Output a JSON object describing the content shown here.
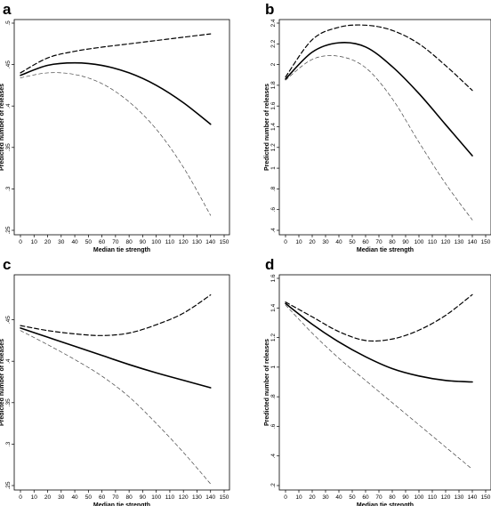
{
  "chart_data": [
    {
      "panel": "a",
      "type": "line",
      "xlabel": "Median tie strength",
      "ylabel": "Predicted number of releases",
      "xlim": [
        0,
        150
      ],
      "ylim": [
        0.25,
        0.5
      ],
      "xticks": [
        "0",
        "10",
        "20",
        "30",
        "40",
        "50",
        "60",
        "70",
        "80",
        "90",
        "100",
        "110",
        "120",
        "130",
        "140",
        "150"
      ],
      "yticks": [
        ".25",
        ".3",
        ".35",
        ".4",
        ".45",
        ".5"
      ],
      "x": [
        0,
        20,
        40,
        60,
        80,
        100,
        120,
        140
      ],
      "series": [
        {
          "style": "solid",
          "values": [
            0.437,
            0.449,
            0.452,
            0.449,
            0.44,
            0.425,
            0.404,
            0.378
          ]
        },
        {
          "style": "dashed-bold",
          "values": [
            0.44,
            0.458,
            0.466,
            0.471,
            0.475,
            0.479,
            0.483,
            0.487
          ]
        },
        {
          "style": "dashed-thin",
          "values": [
            0.434,
            0.44,
            0.438,
            0.427,
            0.405,
            0.372,
            0.326,
            0.268
          ]
        }
      ]
    },
    {
      "panel": "b",
      "type": "line",
      "xlabel": "Median tie strength",
      "ylabel": "Predicted number of releases",
      "xlim": [
        0,
        150
      ],
      "ylim": [
        0.4,
        2.4
      ],
      "xticks": [
        "0",
        "10",
        "20",
        "30",
        "40",
        "50",
        "60",
        "70",
        "80",
        "90",
        "100",
        "110",
        "120",
        "130",
        "140",
        "150"
      ],
      "yticks": [
        ".4",
        ".6",
        ".8",
        "1",
        "1.2",
        "1.4",
        "1.6",
        "1.8",
        "2",
        "2.2",
        "2.4"
      ],
      "x": [
        0,
        20,
        40,
        60,
        80,
        100,
        120,
        140
      ],
      "series": [
        {
          "style": "solid",
          "values": [
            1.86,
            2.12,
            2.21,
            2.17,
            1.98,
            1.72,
            1.42,
            1.12
          ]
        },
        {
          "style": "dashed-bold",
          "values": [
            1.88,
            2.24,
            2.36,
            2.38,
            2.33,
            2.2,
            1.99,
            1.75
          ]
        },
        {
          "style": "dashed-thin",
          "values": [
            1.85,
            2.05,
            2.08,
            1.97,
            1.67,
            1.25,
            0.85,
            0.5
          ]
        }
      ]
    },
    {
      "panel": "c",
      "type": "line",
      "xlabel": "Median tie strength",
      "ylabel": "Predicted number of releases",
      "xlim": [
        0,
        150
      ],
      "ylim": [
        0.25,
        0.5
      ],
      "xticks": [
        "0",
        "10",
        "20",
        "30",
        "40",
        "50",
        "60",
        "70",
        "80",
        "90",
        "100",
        "110",
        "120",
        "130",
        "140",
        "150"
      ],
      "yticks": [
        ".25",
        ".3",
        ".35",
        ".4",
        ".45"
      ],
      "x": [
        0,
        20,
        40,
        60,
        80,
        100,
        120,
        140
      ],
      "series": [
        {
          "style": "solid",
          "values": [
            0.44,
            0.429,
            0.418,
            0.407,
            0.396,
            0.386,
            0.377,
            0.368
          ]
        },
        {
          "style": "dashed-bold",
          "values": [
            0.443,
            0.437,
            0.433,
            0.431,
            0.434,
            0.444,
            0.458,
            0.48
          ]
        },
        {
          "style": "dashed-thin",
          "values": [
            0.437,
            0.42,
            0.402,
            0.382,
            0.357,
            0.325,
            0.29,
            0.252
          ]
        }
      ]
    },
    {
      "panel": "d",
      "type": "line",
      "xlabel": "Median tie strength",
      "ylabel": "Predicted number of releases",
      "xlim": [
        0,
        150
      ],
      "ylim": [
        0.2,
        1.6
      ],
      "xticks": [
        "0",
        "10",
        "20",
        "30",
        "40",
        "50",
        "60",
        "70",
        "80",
        "90",
        "100",
        "110",
        "120",
        "130",
        "140",
        "150"
      ],
      "yticks": [
        ".2",
        ".4",
        ".6",
        ".8",
        "1",
        "1.2",
        "1.4",
        "1.6"
      ],
      "x": [
        0,
        20,
        40,
        60,
        80,
        100,
        120,
        140
      ],
      "series": [
        {
          "style": "solid",
          "values": [
            1.43,
            1.29,
            1.17,
            1.07,
            0.99,
            0.94,
            0.91,
            0.9
          ]
        },
        {
          "style": "dashed-bold",
          "values": [
            1.44,
            1.34,
            1.24,
            1.18,
            1.19,
            1.25,
            1.35,
            1.49
          ]
        },
        {
          "style": "dashed-thin",
          "values": [
            1.42,
            1.23,
            1.06,
            0.91,
            0.76,
            0.61,
            0.46,
            0.31
          ]
        }
      ]
    }
  ],
  "series_styles": {
    "solid": {
      "color": "#000000",
      "dash": "",
      "width": 1.6
    },
    "dashed-bold": {
      "color": "#000000",
      "dash": "5,3",
      "width": 1.2
    },
    "dashed-thin": {
      "color": "#444444",
      "dash": "4,3",
      "width": 0.7
    }
  }
}
